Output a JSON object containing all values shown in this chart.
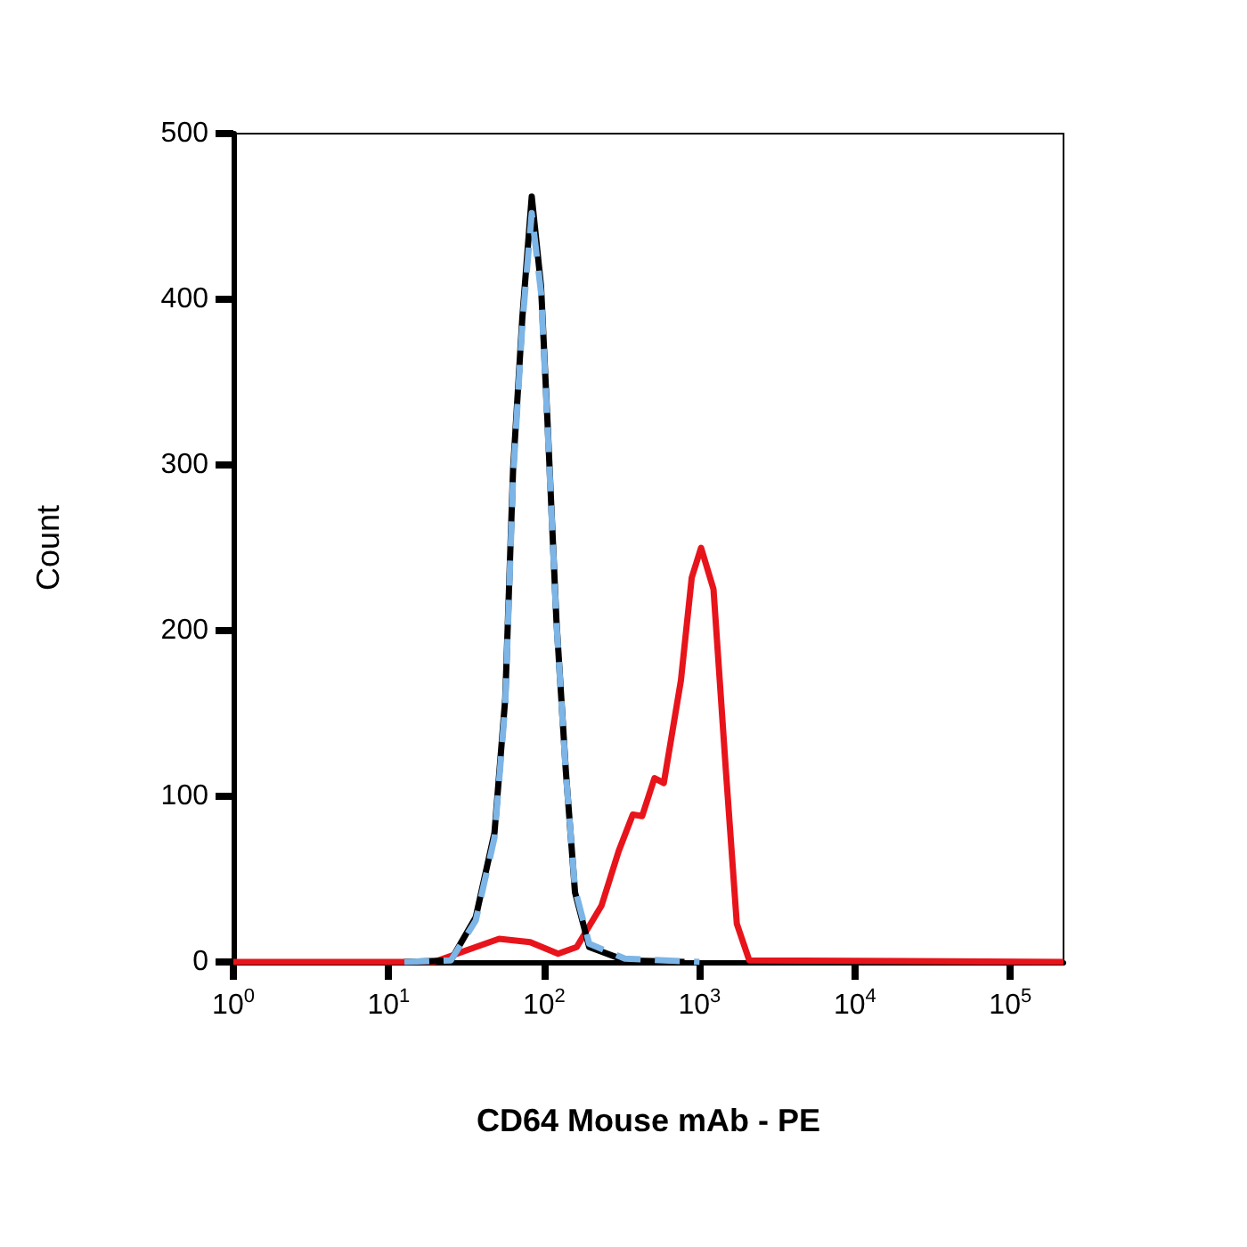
{
  "chart_data": {
    "type": "line",
    "xlabel": "CD64 Mouse mAb - PE",
    "ylabel": "Count",
    "log": "x",
    "grid": false,
    "marker": "none",
    "xlim": [
      1,
      220000
    ],
    "xticks": [
      {
        "value": 1,
        "label": "10$^{0}$"
      },
      {
        "value": 10,
        "label": "10$^{1}$"
      },
      {
        "value": 100,
        "label": "10$^{2}$"
      },
      {
        "value": 1000,
        "label": "10$^{3}$"
      },
      {
        "value": 10000,
        "label": "10$^{4}$"
      },
      {
        "value": 100000,
        "label": "10$^{5}$"
      }
    ],
    "ylim": [
      0,
      500
    ],
    "yticks": [
      0,
      100,
      200,
      300,
      400,
      500
    ],
    "series": [
      {
        "color": "#e8141b",
        "line_style": "solid",
        "x": [
          1,
          19.5,
          36.3,
          51.3,
          81.3,
          123,
          162,
          234,
          302,
          372,
          427,
          513,
          589,
          759,
          891,
          1023,
          1230,
          1479,
          1738,
          2089,
          220000
        ],
        "values": [
          0,
          0,
          9,
          14,
          12,
          5,
          9,
          34,
          67,
          89,
          88,
          111,
          108,
          170,
          232,
          250,
          225,
          115,
          23,
          1,
          0
        ]
      },
      {
        "color": "#000000",
        "line_style": "solid",
        "x": [
          12.6,
          25.1,
          36.3,
          47.9,
          56.2,
          63.1,
          72.4,
          83.2,
          95.5,
          105,
          120,
          138,
          158,
          195,
          331,
          800
        ],
        "values": [
          0,
          1,
          27,
          78,
          159,
          297,
          389,
          462,
          408,
          327,
          206,
          115,
          42,
          9,
          1,
          0
        ]
      },
      {
        "color": "#7cb5e6",
        "line_style": "dashed",
        "x": [
          12.6,
          25.1,
          36.3,
          47.9,
          56.2,
          63.1,
          72.4,
          83.2,
          95.5,
          105,
          120,
          138,
          158,
          195,
          331,
          1000
        ],
        "values": [
          0,
          1,
          25,
          75,
          155,
          292,
          385,
          452,
          404,
          325,
          205,
          114,
          44,
          11,
          2,
          0
        ]
      }
    ]
  }
}
